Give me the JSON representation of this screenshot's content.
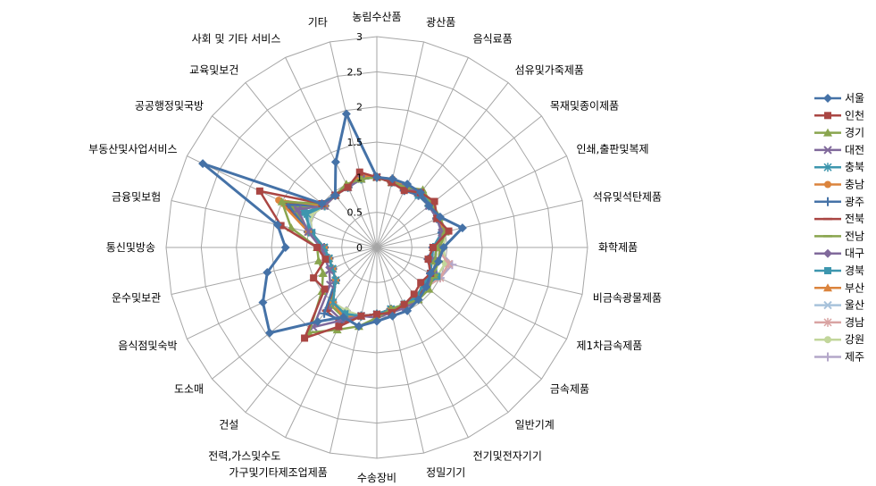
{
  "chart_data": {
    "type": "radar",
    "categories": [
      "농림수산품",
      "광산품",
      "음식료품",
      "섬유및가죽제품",
      "목재및종이제품",
      "인쇄,출판및복제",
      "석유및석탄제품",
      "화학제품",
      "비금속광물제품",
      "제1차금속제품",
      "금속제품",
      "일반기계",
      "전기및전자기기",
      "정밀기기",
      "수송장비",
      "가구및기타제조업제품",
      "전력,가스및수도",
      "건설",
      "도소매",
      "음식점및숙박",
      "운수및보관",
      "통신및방송",
      "금융및보험",
      "부동산및사업서비스",
      "공공행정및국방",
      "교육및보건",
      "사회 및 기타 서비스",
      "기타"
    ],
    "rlim": [
      0,
      3
    ],
    "ticks": [
      "0",
      "0.5",
      "1",
      "1.5",
      "2",
      "2.5",
      "3"
    ],
    "grid": true,
    "legend_position": "right",
    "series": [
      {
        "name": "서울",
        "color": "#4572A7",
        "marker": "diamond",
        "values": [
          1.0,
          1.0,
          1.0,
          1.0,
          0.95,
          1.0,
          1.25,
          0.95,
          0.9,
          0.85,
          0.9,
          0.95,
          1.0,
          1.0,
          1.05,
          1.15,
          1.1,
          1.35,
          1.95,
          1.8,
          1.6,
          1.3,
          1.45,
          2.75,
          1.0,
          0.95,
          1.35,
          1.95
        ]
      },
      {
        "name": "인천",
        "color": "#AA4643",
        "marker": "square",
        "values": [
          1.0,
          0.95,
          0.9,
          1.0,
          1.05,
          0.95,
          1.05,
          0.8,
          0.75,
          0.85,
          0.8,
          0.85,
          0.9,
          0.95,
          0.95,
          1.0,
          1.25,
          1.65,
          0.95,
          1.0,
          0.75,
          0.85,
          1.4,
          1.85,
          1.0,
          0.95,
          0.95,
          1.1
        ]
      },
      {
        "name": "경기",
        "color": "#89A54E",
        "marker": "triangle",
        "values": [
          1.0,
          0.95,
          0.95,
          1.05,
          1.0,
          1.0,
          1.0,
          0.85,
          0.85,
          0.9,
          0.95,
          0.95,
          0.9,
          0.9,
          1.0,
          1.15,
          1.3,
          1.55,
          1.0,
          0.85,
          0.85,
          0.85,
          1.25,
          1.5,
          1.0,
          0.95,
          1.0,
          1.0
        ]
      },
      {
        "name": "대전",
        "color": "#80699B",
        "marker": "x",
        "values": [
          1.0,
          0.95,
          0.95,
          1.0,
          0.95,
          0.95,
          0.95,
          0.85,
          0.85,
          0.9,
          0.9,
          0.95,
          0.95,
          0.95,
          1.0,
          1.0,
          1.15,
          1.45,
          0.85,
          0.75,
          0.75,
          0.8,
          1.0,
          1.25,
          0.95,
          0.95,
          0.95,
          1.0
        ]
      },
      {
        "name": "충북",
        "color": "#3D96AE",
        "marker": "star",
        "values": [
          1.0,
          0.95,
          0.95,
          1.0,
          1.0,
          0.95,
          0.95,
          0.8,
          0.8,
          0.85,
          0.85,
          0.9,
          0.9,
          0.9,
          0.95,
          1.0,
          1.05,
          1.0,
          0.75,
          0.7,
          0.7,
          0.75,
          1.0,
          1.1,
          0.95,
          0.95,
          0.95,
          1.0
        ]
      },
      {
        "name": "충남",
        "color": "#DB843D",
        "marker": "circle",
        "values": [
          1.0,
          1.0,
          0.95,
          1.0,
          1.05,
          0.95,
          1.0,
          0.8,
          0.8,
          0.85,
          0.85,
          0.9,
          0.9,
          0.9,
          0.95,
          1.0,
          1.1,
          1.0,
          0.75,
          0.7,
          0.7,
          0.75,
          1.0,
          1.55,
          0.95,
          0.95,
          0.95,
          1.05
        ]
      },
      {
        "name": "광주",
        "color": "#4572A7",
        "marker": "plus",
        "values": [
          1.0,
          1.0,
          0.9,
          0.95,
          0.95,
          0.95,
          0.95,
          0.8,
          0.75,
          0.85,
          0.85,
          0.9,
          0.9,
          0.9,
          0.95,
          1.0,
          1.15,
          1.2,
          0.75,
          0.7,
          0.7,
          0.75,
          1.0,
          1.4,
          0.95,
          0.95,
          0.95,
          1.0
        ]
      },
      {
        "name": "전북",
        "color": "#AA4643",
        "marker": "dash",
        "values": [
          1.0,
          0.95,
          0.9,
          0.95,
          1.0,
          0.95,
          1.0,
          0.8,
          0.8,
          0.85,
          0.9,
          0.9,
          0.9,
          0.9,
          0.95,
          1.0,
          1.2,
          1.15,
          0.75,
          0.7,
          0.7,
          0.75,
          1.0,
          1.45,
          0.95,
          0.95,
          0.95,
          1.05
        ]
      },
      {
        "name": "전남",
        "color": "#89A54E",
        "marker": "dash",
        "values": [
          1.0,
          0.95,
          0.95,
          0.95,
          0.95,
          0.95,
          1.0,
          0.9,
          0.9,
          0.9,
          0.9,
          0.9,
          0.9,
          0.9,
          0.95,
          1.0,
          1.1,
          1.05,
          0.75,
          0.7,
          0.7,
          0.75,
          1.0,
          1.35,
          0.95,
          0.95,
          0.95,
          1.0
        ]
      },
      {
        "name": "대구",
        "color": "#80699B",
        "marker": "diamond",
        "values": [
          1.0,
          0.95,
          0.95,
          1.0,
          1.0,
          0.95,
          0.95,
          0.8,
          0.8,
          0.85,
          0.85,
          0.9,
          0.9,
          0.9,
          0.95,
          1.0,
          1.15,
          1.1,
          0.75,
          0.7,
          0.7,
          0.8,
          1.0,
          1.3,
          0.95,
          0.95,
          0.95,
          1.0
        ]
      },
      {
        "name": "경북",
        "color": "#3D96AE",
        "marker": "square",
        "values": [
          1.0,
          0.95,
          0.95,
          0.95,
          0.95,
          0.95,
          0.95,
          0.85,
          0.85,
          0.95,
          0.9,
          0.9,
          0.9,
          0.9,
          0.95,
          1.0,
          1.05,
          1.0,
          0.75,
          0.7,
          0.7,
          0.75,
          0.95,
          1.15,
          0.95,
          0.95,
          0.95,
          1.0
        ]
      },
      {
        "name": "부산",
        "color": "#DB843D",
        "marker": "triangle",
        "values": [
          1.0,
          0.95,
          0.95,
          1.0,
          1.0,
          0.95,
          1.0,
          0.8,
          0.8,
          0.85,
          0.85,
          0.9,
          0.9,
          0.9,
          0.95,
          1.0,
          1.1,
          1.05,
          0.75,
          0.7,
          0.7,
          0.75,
          1.0,
          1.45,
          0.95,
          0.95,
          0.95,
          1.0
        ]
      },
      {
        "name": "울산",
        "color": "#A7C2DB",
        "marker": "x",
        "values": [
          1.0,
          0.95,
          0.95,
          0.95,
          0.95,
          0.95,
          1.0,
          0.85,
          0.8,
          0.85,
          0.85,
          0.9,
          0.9,
          0.9,
          0.95,
          1.0,
          1.05,
          1.0,
          0.75,
          0.7,
          0.7,
          0.75,
          0.95,
          1.1,
          0.95,
          0.95,
          0.95,
          1.0
        ]
      },
      {
        "name": "경남",
        "color": "#D9A3A2",
        "marker": "star",
        "values": [
          1.0,
          0.95,
          0.95,
          0.95,
          0.95,
          0.95,
          1.0,
          0.85,
          1.05,
          1.0,
          0.9,
          0.9,
          0.9,
          0.9,
          0.95,
          1.0,
          1.05,
          1.0,
          0.75,
          0.7,
          0.7,
          0.75,
          0.95,
          1.1,
          0.95,
          0.95,
          0.95,
          1.0
        ]
      },
      {
        "name": "강원",
        "color": "#C2D69B",
        "marker": "circle",
        "values": [
          1.0,
          0.95,
          0.95,
          0.95,
          0.95,
          0.95,
          1.0,
          0.95,
          1.0,
          0.95,
          0.9,
          0.9,
          0.9,
          0.9,
          0.95,
          1.0,
          1.0,
          1.0,
          0.75,
          0.7,
          0.7,
          0.75,
          0.95,
          1.05,
          0.95,
          0.95,
          0.95,
          1.0
        ]
      },
      {
        "name": "제주",
        "color": "#B4A7C9",
        "marker": "plus",
        "values": [
          1.0,
          0.95,
          0.95,
          0.95,
          0.95,
          0.95,
          0.95,
          0.85,
          1.1,
          1.0,
          0.9,
          0.9,
          0.9,
          0.9,
          0.95,
          1.0,
          1.0,
          1.0,
          0.75,
          0.7,
          0.7,
          0.75,
          0.95,
          1.05,
          0.95,
          0.95,
          0.95,
          1.0
        ]
      }
    ]
  }
}
